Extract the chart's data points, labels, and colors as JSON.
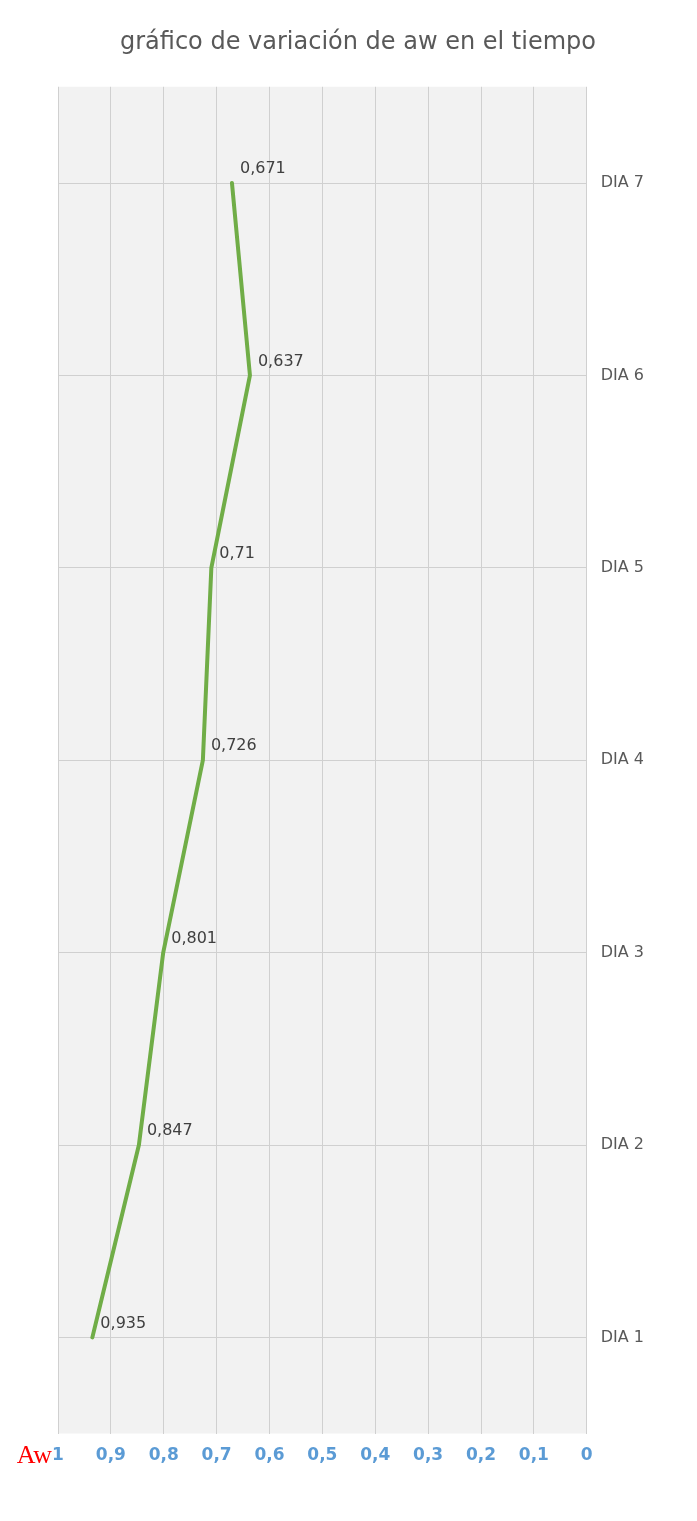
{
  "chart_data": {
    "type": "line",
    "orientation": "horizontal",
    "title": "gráfico de variación de aw en el tiempo",
    "xlabel": "Aw",
    "categories": [
      "DIA 7",
      "DIA 6",
      "DIA 5",
      "DIA 4",
      "DIA 3",
      "DIA 2",
      "DIA 1"
    ],
    "series": [
      {
        "color": "#70ad47",
        "values": [
          0.671,
          0.637,
          0.71,
          0.726,
          0.801,
          0.847,
          0.935
        ],
        "value_labels": [
          "0,671",
          "0,637",
          "0,71",
          "0,726",
          "0,801",
          "0,847",
          "0,935"
        ]
      }
    ],
    "xlim": [
      1,
      0
    ],
    "xticks": [
      {
        "value": 0,
        "label": "0"
      },
      {
        "value": 0.1,
        "label": "0,1"
      },
      {
        "value": 0.2,
        "label": "0,2"
      },
      {
        "value": 0.3,
        "label": "0,3"
      },
      {
        "value": 0.4,
        "label": "0,4"
      },
      {
        "value": 0.5,
        "label": "0,5"
      },
      {
        "value": 0.6,
        "label": "0,6"
      },
      {
        "value": 0.7,
        "label": "0,7"
      },
      {
        "value": 0.8,
        "label": "0,8"
      },
      {
        "value": 0.9,
        "label": "0,9"
      },
      {
        "value": 1,
        "label": "1"
      }
    ],
    "grid": true,
    "marker": "none",
    "line_style": "solid",
    "legend": false
  }
}
